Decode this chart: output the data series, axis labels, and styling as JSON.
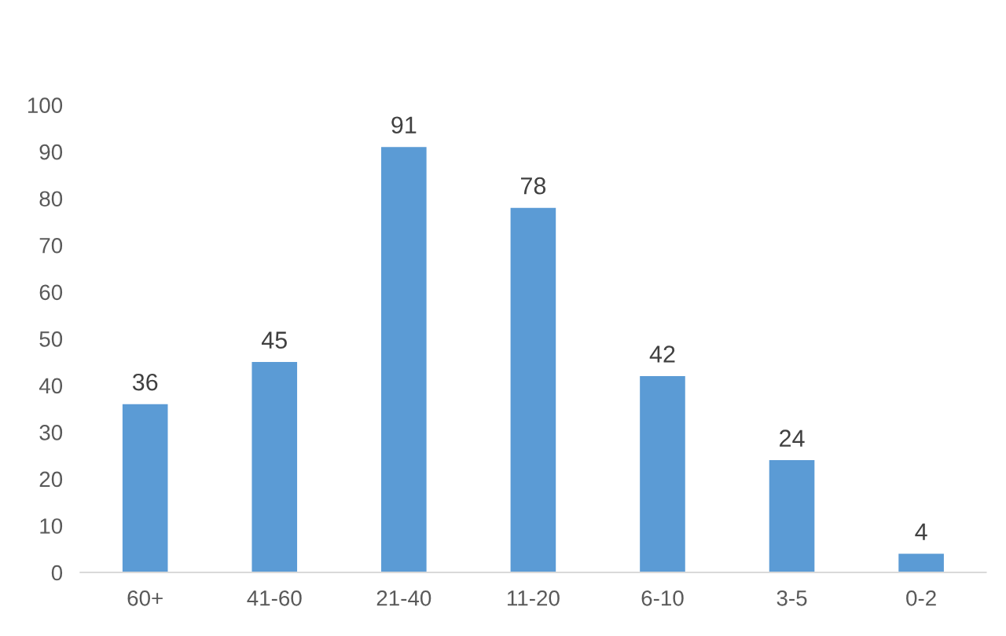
{
  "chart_data": {
    "type": "bar",
    "categories": [
      "60+",
      "41-60",
      "21-40",
      "11-20",
      "6-10",
      "3-5",
      "0-2"
    ],
    "values": [
      36,
      45,
      91,
      78,
      42,
      24,
      4
    ],
    "color": "#5b9bd5",
    "ylim": [
      0,
      100
    ],
    "yticks": [
      0,
      10,
      20,
      30,
      40,
      50,
      60,
      70,
      80,
      90,
      100
    ],
    "data_labels": true
  }
}
